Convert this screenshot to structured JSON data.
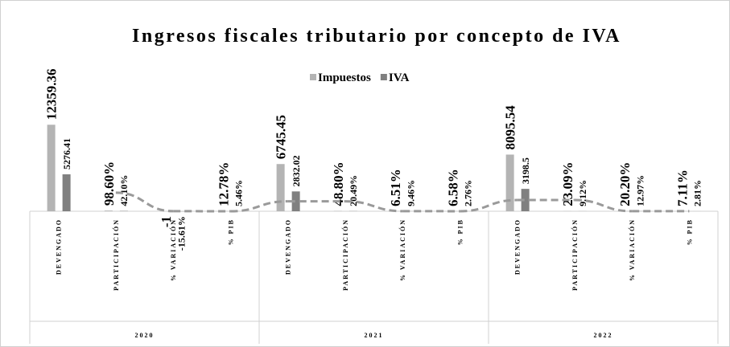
{
  "chart_data": {
    "type": "bar",
    "title": "Ingresos fiscales tributario por concepto de IVA",
    "categories": [
      "DEVENGADO",
      "PARTICIPACIÓN",
      "% VARIACIÓN",
      "% PIB",
      "DEVENGADO",
      "PARTICIPACIÓN",
      "% VARIACIÓN",
      "% PIB",
      "DEVENGADO",
      "PARTICIPACIÓN",
      "% VARIACIÓN",
      "% PIB"
    ],
    "category_groups": [
      "2020",
      "2021",
      "2022"
    ],
    "series": [
      {
        "name": "Impuestos",
        "color": "#b4b4b4",
        "values": [
          12359.36,
          98.6,
          -1,
          12.78,
          6745.45,
          48.8,
          6.51,
          6.58,
          8095.54,
          23.09,
          20.2,
          7.11
        ],
        "value_labels": [
          "12359.36",
          "98.60%",
          "-1",
          "12.78%",
          "6745.45",
          "48.80%",
          "6.51%",
          "6.58%",
          "8095.54",
          "23.09%",
          "20.20%",
          "7.11%"
        ]
      },
      {
        "name": "IVA",
        "color": "#808080",
        "values": [
          5276.41,
          42.1,
          -15.61,
          5.46,
          2832.02,
          20.49,
          9.46,
          2.76,
          3198.5,
          9.12,
          12.97,
          2.81
        ],
        "value_labels": [
          "5276.41",
          "42.10%",
          "-15.61%",
          "5.46%",
          "2832.02",
          "20.49%",
          "9.46%",
          "2.76%",
          "3198.5",
          "9.12%",
          "12.97%",
          "2.81%"
        ]
      }
    ],
    "trendline": {
      "series": 1,
      "period": 2,
      "color": "#9a9a9a",
      "dashed": true
    },
    "ylim": [
      0,
      14000
    ]
  }
}
